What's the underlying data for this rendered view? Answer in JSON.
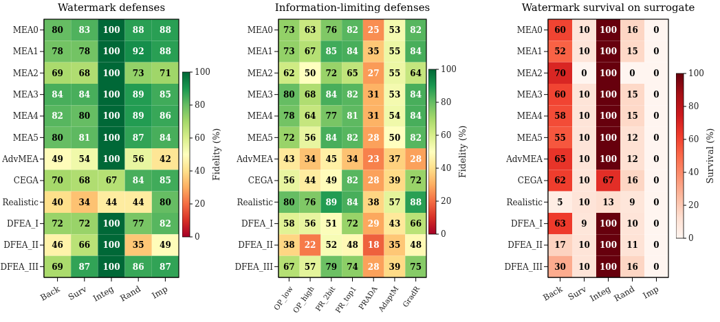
{
  "chart_data": [
    {
      "type": "heatmap",
      "title": "Watermark defenses",
      "clabel": "Fidelity (%)",
      "categories": [
        "Back",
        "Surv",
        "Integ",
        "Rand",
        "Imp"
      ],
      "y_categories": [
        "MEA0",
        "MEA1",
        "MEA2",
        "MEA3",
        "MEA4",
        "MEA5",
        "AdvMEA",
        "CEGA",
        "Realistic",
        "DFEA_I",
        "DFEA_II",
        "DFEA_III"
      ],
      "cells": [
        [
          80,
          83,
          100,
          88,
          88
        ],
        [
          78,
          78,
          100,
          92,
          88
        ],
        [
          69,
          68,
          100,
          73,
          71
        ],
        [
          84,
          84,
          100,
          89,
          85
        ],
        [
          82,
          80,
          100,
          89,
          86
        ],
        [
          80,
          81,
          100,
          87,
          84
        ],
        [
          49,
          54,
          100,
          56,
          42
        ],
        [
          70,
          68,
          67,
          84,
          85
        ],
        [
          40,
          34,
          44,
          44,
          80
        ],
        [
          72,
          72,
          100,
          77,
          82
        ],
        [
          46,
          66,
          100,
          35,
          49
        ],
        [
          69,
          87,
          100,
          86,
          87
        ]
      ],
      "clim": [
        0,
        100
      ],
      "cticks": [
        0,
        20,
        40,
        60,
        80,
        100
      ],
      "data_labels": true
    },
    {
      "type": "heatmap",
      "title": "Information-limiting defenses",
      "clabel": "Fidelity (%)",
      "categories": [
        "OP_low",
        "OP_high",
        "PR_2bit",
        "PR_top1",
        "PRADA",
        "AdaptM",
        "GradR"
      ],
      "y_categories": [
        "MEA0",
        "MEA1",
        "MEA2",
        "MEA3",
        "MEA4",
        "MEA5",
        "AdvMEA",
        "CEGA",
        "Realistic",
        "DFEA_I",
        "DFEA_II",
        "DFEA_III"
      ],
      "cells": [
        [
          73,
          63,
          76,
          82,
          25,
          53,
          82
        ],
        [
          73,
          67,
          85,
          84,
          35,
          55,
          84
        ],
        [
          62,
          50,
          72,
          65,
          27,
          55,
          64
        ],
        [
          80,
          68,
          84,
          82,
          31,
          53,
          84
        ],
        [
          78,
          64,
          77,
          81,
          31,
          54,
          84
        ],
        [
          72,
          56,
          84,
          82,
          28,
          50,
          82
        ],
        [
          43,
          34,
          45,
          34,
          23,
          37,
          28
        ],
        [
          56,
          44,
          49,
          82,
          28,
          39,
          72
        ],
        [
          80,
          76,
          89,
          84,
          38,
          57,
          88
        ],
        [
          58,
          56,
          51,
          72,
          29,
          43,
          66
        ],
        [
          38,
          22,
          52,
          48,
          18,
          35,
          48
        ],
        [
          67,
          57,
          79,
          74,
          28,
          39,
          75
        ]
      ],
      "clim": [
        0,
        100
      ],
      "cticks": [
        0,
        20,
        40,
        60,
        80,
        100
      ],
      "data_labels": true
    },
    {
      "type": "heatmap",
      "title": "Watermark survival on surrogate",
      "clabel": "Survival (%)",
      "categories": [
        "Back",
        "Surv",
        "Integ",
        "Rand",
        "Imp"
      ],
      "y_categories": [
        "MEA0",
        "MEA1",
        "MEA2",
        "MEA3",
        "MEA4",
        "MEA5",
        "AdvMEA",
        "CEGA",
        "Realistic",
        "DFEA_I",
        "DFEA_II",
        "DFEA_III"
      ],
      "cells": [
        [
          60,
          10,
          100,
          16,
          0
        ],
        [
          52,
          10,
          100,
          15,
          0
        ],
        [
          70,
          0,
          100,
          0,
          0
        ],
        [
          60,
          10,
          100,
          15,
          0
        ],
        [
          58,
          10,
          100,
          15,
          0
        ],
        [
          55,
          10,
          100,
          12,
          0
        ],
        [
          65,
          10,
          100,
          12,
          0
        ],
        [
          62,
          10,
          67,
          16,
          0
        ],
        [
          5,
          10,
          13,
          9,
          0
        ],
        [
          63,
          9,
          100,
          10,
          0
        ],
        [
          17,
          10,
          100,
          11,
          0
        ],
        [
          30,
          10,
          100,
          16,
          0
        ]
      ],
      "clim": [
        0,
        100
      ],
      "cticks": [
        0,
        20,
        40,
        60,
        80,
        100
      ],
      "data_labels": true
    }
  ]
}
